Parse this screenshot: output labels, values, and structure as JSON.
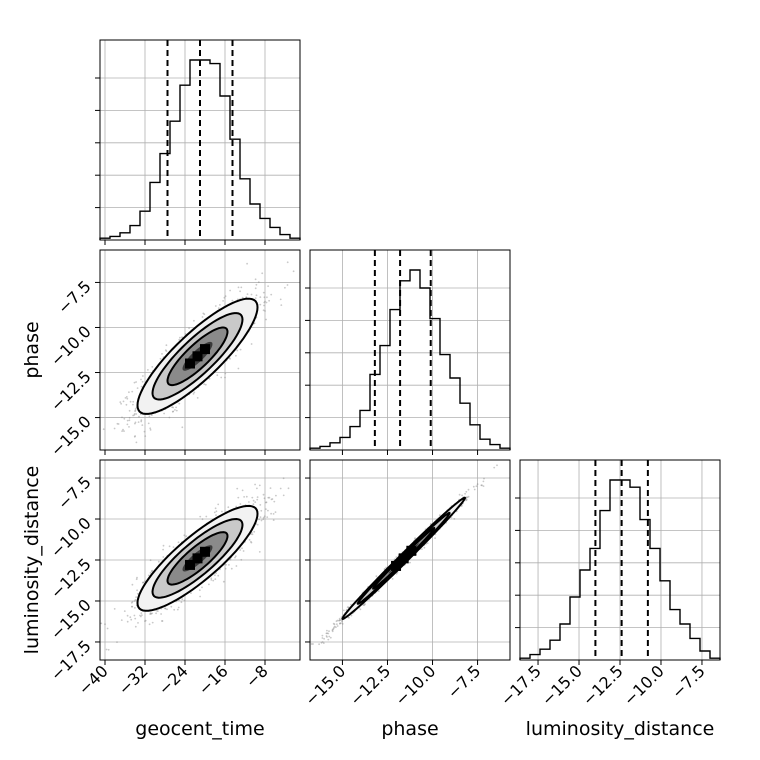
{
  "chart_data": {
    "type": "corner",
    "parameters": [
      "geocent_time",
      "phase",
      "luminosity_distance"
    ],
    "axis_labels": {
      "bottom": [
        "geocent_time",
        "phase",
        "luminosity_distance"
      ],
      "left": [
        "phase",
        "luminosity_distance"
      ]
    },
    "grid": true,
    "colors": {
      "line": "#000000",
      "scatter": "#888888",
      "grid": "#b0b0b0"
    },
    "ranges": {
      "geocent_time": [
        -41,
        -1
      ],
      "phase": [
        -16.8,
        -5.7
      ],
      "luminosity_distance": [
        -18.6,
        -6.4
      ]
    },
    "ticks": {
      "geocent_time": [
        -40,
        -32,
        -24,
        -16,
        -8
      ],
      "phase": [
        -15.0,
        -12.5,
        -10.0,
        -7.5
      ],
      "luminosity_distance": [
        -17.5,
        -15.0,
        -12.5,
        -10.0,
        -7.5
      ]
    },
    "tick_labels": {
      "geocent_time": [
        "−40",
        "−32",
        "−24",
        "−16",
        "−8"
      ],
      "phase": [
        "−15.0",
        "−12.5",
        "−10.0",
        "−7.5"
      ],
      "luminosity_distance": [
        "−17.5",
        "−15.0",
        "−12.5",
        "−10.0",
        "−7.5"
      ]
    },
    "quantiles": {
      "geocent_time": [
        -27.5,
        -21.0,
        -14.5
      ],
      "phase": [
        -13.2,
        -11.8,
        -10.1
      ],
      "luminosity_distance": [
        -14.0,
        -12.4,
        -10.8
      ]
    },
    "histograms": {
      "geocent_time": {
        "edges": [
          -41,
          -39,
          -37,
          -35,
          -33,
          -31,
          -29,
          -27,
          -25,
          -23,
          -21,
          -19,
          -17,
          -15,
          -13,
          -11,
          -9,
          -7,
          -5,
          -3,
          -1
        ],
        "counts": [
          1,
          2,
          4,
          8,
          16,
          32,
          48,
          66,
          86,
          100,
          100,
          98,
          80,
          56,
          34,
          20,
          12,
          7,
          3,
          1
        ]
      },
      "phase": {
        "edges": [
          -16.8,
          -16.245,
          -15.69,
          -15.135,
          -14.58,
          -14.025,
          -13.47,
          -12.915,
          -12.36,
          -11.805,
          -11.25,
          -10.695,
          -10.14,
          -9.585,
          -9.03,
          -8.475,
          -7.92,
          -7.365,
          -6.81,
          -6.255,
          -5.7
        ],
        "counts": [
          1,
          2,
          4,
          7,
          13,
          22,
          42,
          58,
          78,
          94,
          100,
          90,
          73,
          53,
          40,
          26,
          14,
          6,
          3,
          1
        ]
      },
      "luminosity_distance": {
        "edges": [
          -18.6,
          -17.99,
          -17.38,
          -16.77,
          -16.16,
          -15.55,
          -14.94,
          -14.33,
          -13.72,
          -13.11,
          -12.5,
          -11.89,
          -11.28,
          -10.67,
          -10.06,
          -9.45,
          -8.84,
          -8.23,
          -7.62,
          -7.01,
          -6.4
        ],
        "counts": [
          1,
          3,
          6,
          11,
          20,
          35,
          50,
          62,
          83,
          100,
          100,
          96,
          78,
          62,
          44,
          28,
          20,
          12,
          5,
          1
        ]
      }
    },
    "pairs": [
      {
        "x": "geocent_time",
        "y": "phase",
        "mean": [
          -21.5,
          -11.6
        ],
        "sigma": [
          6.0,
          1.6
        ],
        "rho": 0.85
      },
      {
        "x": "geocent_time",
        "y": "luminosity_distance",
        "mean": [
          -21.5,
          -12.4
        ],
        "sigma": [
          6.0,
          1.6
        ],
        "rho": 0.85
      },
      {
        "x": "phase",
        "y": "luminosity_distance",
        "mean": [
          -11.6,
          -12.4
        ],
        "sigma": [
          1.7,
          1.85
        ],
        "rho": 0.995
      }
    ]
  }
}
